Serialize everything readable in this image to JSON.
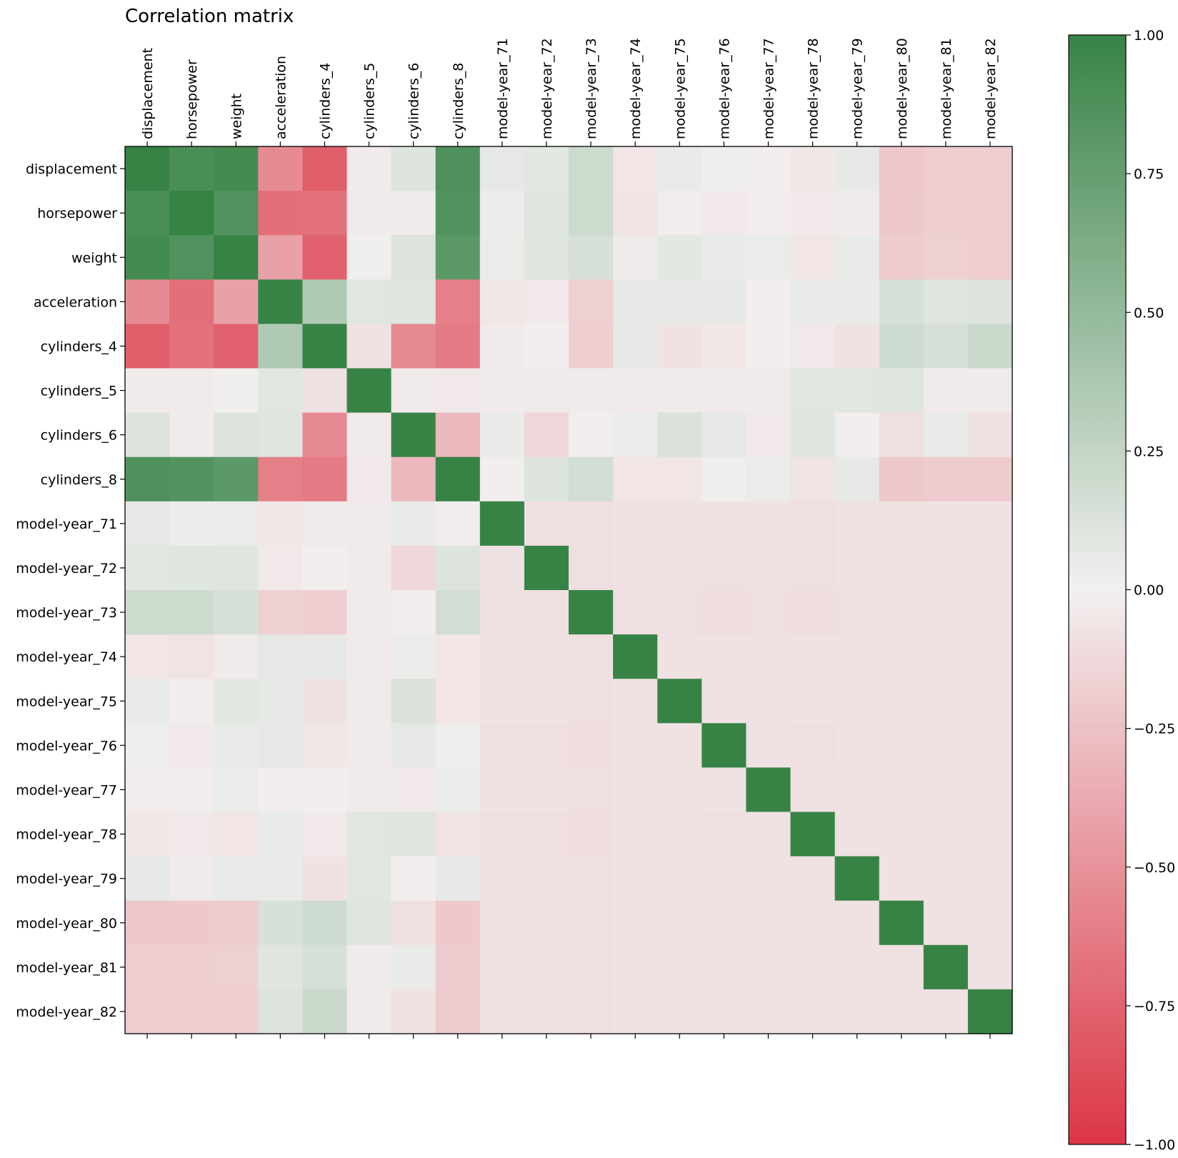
{
  "chart_data": {
    "type": "heatmap",
    "title": "Correlation matrix",
    "variables": [
      "displacement",
      "horsepower",
      "weight",
      "acceleration",
      "cylinders_4",
      "cylinders_5",
      "cylinders_6",
      "cylinders_8",
      "model-year_71",
      "model-year_72",
      "model-year_73",
      "model-year_74",
      "model-year_75",
      "model-year_76",
      "model-year_77",
      "model-year_78",
      "model-year_79",
      "model-year_80",
      "model-year_81",
      "model-year_82"
    ],
    "values": [
      [
        1.0,
        0.9,
        0.93,
        -0.54,
        -0.78,
        -0.03,
        0.11,
        0.87,
        0.07,
        0.08,
        0.2,
        -0.06,
        0.05,
        0.02,
        -0.02,
        -0.05,
        0.06,
        -0.22,
        -0.19,
        -0.19
      ],
      [
        0.9,
        1.0,
        0.86,
        -0.69,
        -0.68,
        -0.03,
        -0.03,
        0.85,
        0.03,
        0.1,
        0.2,
        -0.07,
        -0.02,
        -0.04,
        -0.02,
        -0.04,
        -0.03,
        -0.21,
        -0.18,
        -0.19
      ],
      [
        0.93,
        0.86,
        1.0,
        -0.42,
        -0.76,
        0.01,
        0.12,
        0.8,
        0.04,
        0.1,
        0.15,
        -0.03,
        0.08,
        0.05,
        0.04,
        -0.06,
        0.05,
        -0.2,
        -0.17,
        -0.19
      ],
      [
        -0.54,
        -0.69,
        -0.42,
        1.0,
        0.36,
        0.09,
        0.1,
        -0.6,
        -0.05,
        -0.04,
        -0.17,
        0.07,
        0.07,
        0.07,
        -0.01,
        0.05,
        0.05,
        0.14,
        0.1,
        0.12
      ],
      [
        -0.78,
        -0.68,
        -0.76,
        0.36,
        1.0,
        -0.08,
        -0.55,
        -0.63,
        -0.03,
        -0.01,
        -0.18,
        0.06,
        -0.08,
        -0.05,
        -0.01,
        -0.04,
        -0.08,
        0.19,
        0.15,
        0.22
      ],
      [
        -0.03,
        -0.03,
        0.01,
        0.09,
        -0.08,
        1.0,
        -0.03,
        -0.04,
        -0.03,
        -0.03,
        -0.03,
        -0.03,
        -0.03,
        -0.03,
        -0.03,
        0.09,
        0.09,
        0.1,
        -0.03,
        -0.03
      ],
      [
        0.11,
        -0.03,
        0.12,
        0.1,
        -0.55,
        -0.03,
        1.0,
        -0.3,
        0.05,
        -0.14,
        -0.01,
        0.03,
        0.13,
        0.07,
        -0.04,
        0.1,
        -0.01,
        -0.09,
        0.05,
        -0.08
      ],
      [
        0.87,
        0.85,
        0.8,
        -0.6,
        -0.63,
        -0.04,
        -0.3,
        1.0,
        -0.01,
        0.11,
        0.17,
        -0.06,
        -0.06,
        0.02,
        0.04,
        -0.07,
        0.06,
        -0.21,
        -0.2,
        -0.2
      ],
      [
        0.07,
        0.03,
        0.04,
        -0.05,
        -0.03,
        -0.03,
        0.05,
        -0.01,
        1.0,
        -0.08,
        -0.09,
        -0.08,
        -0.08,
        -0.09,
        -0.08,
        -0.09,
        -0.08,
        -0.08,
        -0.08,
        -0.08
      ],
      [
        0.08,
        0.1,
        0.1,
        -0.04,
        -0.01,
        -0.03,
        -0.14,
        0.11,
        -0.08,
        1.0,
        -0.09,
        -0.08,
        -0.08,
        -0.09,
        -0.08,
        -0.09,
        -0.08,
        -0.08,
        -0.08,
        -0.08
      ],
      [
        0.2,
        0.2,
        0.15,
        -0.17,
        -0.18,
        -0.03,
        -0.01,
        0.17,
        -0.09,
        -0.09,
        1.0,
        -0.09,
        -0.09,
        -0.1,
        -0.09,
        -0.1,
        -0.09,
        -0.09,
        -0.09,
        -0.09
      ],
      [
        -0.06,
        -0.07,
        -0.03,
        0.07,
        0.06,
        -0.03,
        0.03,
        -0.06,
        -0.08,
        -0.08,
        -0.09,
        1.0,
        -0.08,
        -0.08,
        -0.08,
        -0.08,
        -0.08,
        -0.08,
        -0.08,
        -0.08
      ],
      [
        0.05,
        -0.02,
        0.08,
        0.07,
        -0.08,
        -0.03,
        0.13,
        -0.06,
        -0.08,
        -0.08,
        -0.09,
        -0.08,
        1.0,
        -0.08,
        -0.08,
        -0.08,
        -0.08,
        -0.08,
        -0.08,
        -0.08
      ],
      [
        0.02,
        -0.04,
        0.05,
        0.07,
        -0.05,
        -0.03,
        0.07,
        0.02,
        -0.09,
        -0.09,
        -0.1,
        -0.08,
        -0.08,
        1.0,
        -0.08,
        -0.09,
        -0.08,
        -0.08,
        -0.08,
        -0.08
      ],
      [
        -0.02,
        -0.02,
        0.04,
        -0.01,
        -0.01,
        -0.03,
        -0.04,
        0.04,
        -0.08,
        -0.08,
        -0.09,
        -0.08,
        -0.08,
        -0.08,
        1.0,
        -0.08,
        -0.08,
        -0.08,
        -0.08,
        -0.08
      ],
      [
        -0.05,
        -0.04,
        -0.06,
        0.05,
        -0.04,
        0.09,
        0.1,
        -0.07,
        -0.09,
        -0.09,
        -0.1,
        -0.08,
        -0.08,
        -0.09,
        -0.08,
        1.0,
        -0.08,
        -0.08,
        -0.08,
        -0.08
      ],
      [
        0.06,
        -0.03,
        0.05,
        0.05,
        -0.08,
        0.09,
        -0.01,
        0.06,
        -0.08,
        -0.08,
        -0.09,
        -0.08,
        -0.08,
        -0.08,
        -0.08,
        -0.08,
        1.0,
        -0.08,
        -0.08,
        -0.08
      ],
      [
        -0.22,
        -0.21,
        -0.2,
        0.14,
        0.19,
        0.1,
        -0.09,
        -0.21,
        -0.08,
        -0.08,
        -0.09,
        -0.08,
        -0.08,
        -0.08,
        -0.08,
        -0.08,
        -0.08,
        1.0,
        -0.08,
        -0.08
      ],
      [
        -0.19,
        -0.18,
        -0.17,
        0.1,
        0.15,
        -0.03,
        0.05,
        -0.2,
        -0.08,
        -0.08,
        -0.09,
        -0.08,
        -0.08,
        -0.08,
        -0.08,
        -0.08,
        -0.08,
        -0.08,
        1.0,
        -0.08
      ],
      [
        -0.19,
        -0.19,
        -0.19,
        0.12,
        0.22,
        -0.03,
        -0.08,
        -0.2,
        -0.08,
        -0.08,
        -0.09,
        -0.08,
        -0.08,
        -0.08,
        -0.08,
        -0.08,
        -0.08,
        -0.08,
        -0.08,
        1.0
      ]
    ],
    "vmin": -1.0,
    "vmax": 1.0,
    "colorbar": {
      "ticks": [
        -1.0,
        -0.75,
        -0.5,
        -0.25,
        0.0,
        0.25,
        0.5,
        0.75,
        1.0
      ],
      "tick_labels": [
        "−1.00",
        "−0.75",
        "−0.50",
        "−0.25",
        "0.00",
        "0.25",
        "0.50",
        "0.75",
        "1.00"
      ],
      "color_low": "#dc3545",
      "color_mid": "#f2f0f0",
      "color_high": "#378346"
    },
    "x_tick_position": "top",
    "grid": false
  }
}
